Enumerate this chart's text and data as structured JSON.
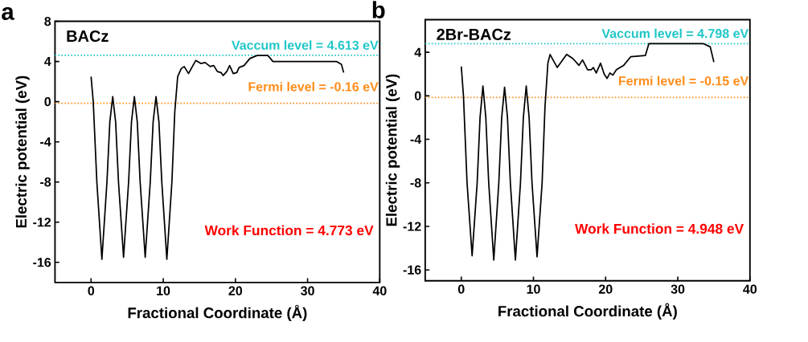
{
  "chart_data": [
    {
      "type": "line",
      "xlabel": "Fractional Coordinate (Å)",
      "ylabel": "Electric potential (eV)",
      "color": "#000000",
      "x": [
        0,
        0.3,
        0.8,
        1.5,
        2.2,
        2.6,
        3.0,
        3.4,
        3.8,
        4.5,
        5.2,
        5.6,
        6.0,
        6.4,
        6.8,
        7.5,
        8.2,
        8.6,
        9.0,
        9.4,
        9.8,
        10.5,
        11.2,
        11.6,
        12.0,
        12.5,
        12.9,
        13.5,
        14.5,
        15.2,
        15.8,
        16.5,
        17.0,
        17.5,
        18.0,
        18.3,
        18.8,
        19.2,
        19.7,
        20.2,
        20.5,
        21.2,
        22.0,
        23.0,
        24.5,
        25.2,
        30,
        34,
        34.7,
        35
      ],
      "values": [
        2.5,
        0,
        -8,
        -15.7,
        -8,
        -2,
        0.5,
        -2,
        -8,
        -15.5,
        -8,
        -2,
        0.5,
        -2,
        -8,
        -15.5,
        -8,
        -2,
        0.5,
        -2,
        -8,
        -15.7,
        -8,
        -1,
        2.5,
        3.3,
        3.5,
        2.8,
        4.1,
        3.8,
        3.9,
        3.5,
        3.6,
        3.0,
        2.9,
        2.6,
        3.0,
        3.6,
        2.8,
        2.9,
        3.4,
        3.6,
        4.3,
        4.6,
        4.6,
        4.0,
        4.0,
        4.0,
        3.7,
        2.9
      ],
      "xlim": [
        -5,
        40
      ],
      "xticks": [
        0,
        10,
        20,
        30,
        40
      ],
      "ylim": [
        -18,
        8
      ],
      "yticks": [
        -16,
        -12,
        -8,
        -4,
        0,
        4,
        8
      ],
      "ref_lines": [
        {
          "axis": "y",
          "value": 4.613,
          "label": "Vaccum level = 4.613 eV",
          "color": "#1fc6c8",
          "line_style": "dotted"
        },
        {
          "axis": "y",
          "value": -0.16,
          "label": "Fermi level = -0.16 eV",
          "color": "#ff8c1a",
          "line_style": "dotted"
        }
      ],
      "annotations": [
        "a",
        "BACz",
        "Work Function = 4.773 eV"
      ]
    },
    {
      "type": "line",
      "xlabel": "Fractional Coordinate (Å)",
      "ylabel": "Electric potential (eV)",
      "color": "#000000",
      "x": [
        0,
        0.3,
        0.8,
        1.5,
        2.2,
        2.6,
        3.0,
        3.4,
        3.8,
        4.5,
        5.2,
        5.6,
        6.0,
        6.4,
        6.8,
        7.5,
        8.2,
        8.6,
        9.0,
        9.4,
        9.8,
        10.5,
        11.2,
        11.6,
        12.0,
        12.3,
        13.3,
        14.6,
        15.5,
        16.3,
        16.8,
        17.5,
        18.0,
        18.3,
        18.7,
        19.3,
        19.8,
        20.2,
        20.6,
        21.0,
        21.5,
        22.5,
        23.5,
        25.5,
        26.0,
        33.5,
        34.5,
        35.0
      ],
      "values": [
        2.7,
        0,
        -8,
        -14.7,
        -8,
        -2,
        0.9,
        -2,
        -8,
        -15.1,
        -8,
        -2,
        0.8,
        -2,
        -8,
        -15.1,
        -8,
        -2,
        0.9,
        -2,
        -8,
        -14.8,
        -8,
        -1,
        3.0,
        3.8,
        2.6,
        3.8,
        3.4,
        2.8,
        3.3,
        2.4,
        2.4,
        2.6,
        2.1,
        3.0,
        2.0,
        1.6,
        2.1,
        1.9,
        2.4,
        2.8,
        3.6,
        3.7,
        4.8,
        4.8,
        4.5,
        3.1
      ],
      "xlim": [
        -5,
        40
      ],
      "xticks": [
        0,
        10,
        20,
        30,
        40
      ],
      "ylim": [
        -17,
        7
      ],
      "yticks": [
        -16,
        -12,
        -8,
        -4,
        0,
        4
      ],
      "ref_lines": [
        {
          "axis": "y",
          "value": 4.798,
          "label": "Vaccum level = 4.798 eV",
          "color": "#1fc6c8",
          "line_style": "dotted"
        },
        {
          "axis": "y",
          "value": -0.15,
          "label": "Fermi level = -0.15 eV",
          "color": "#ff8c1a",
          "line_style": "dotted"
        }
      ],
      "annotations": [
        "b",
        "2Br-BACz",
        "Work Function = 4.948 eV"
      ]
    }
  ]
}
